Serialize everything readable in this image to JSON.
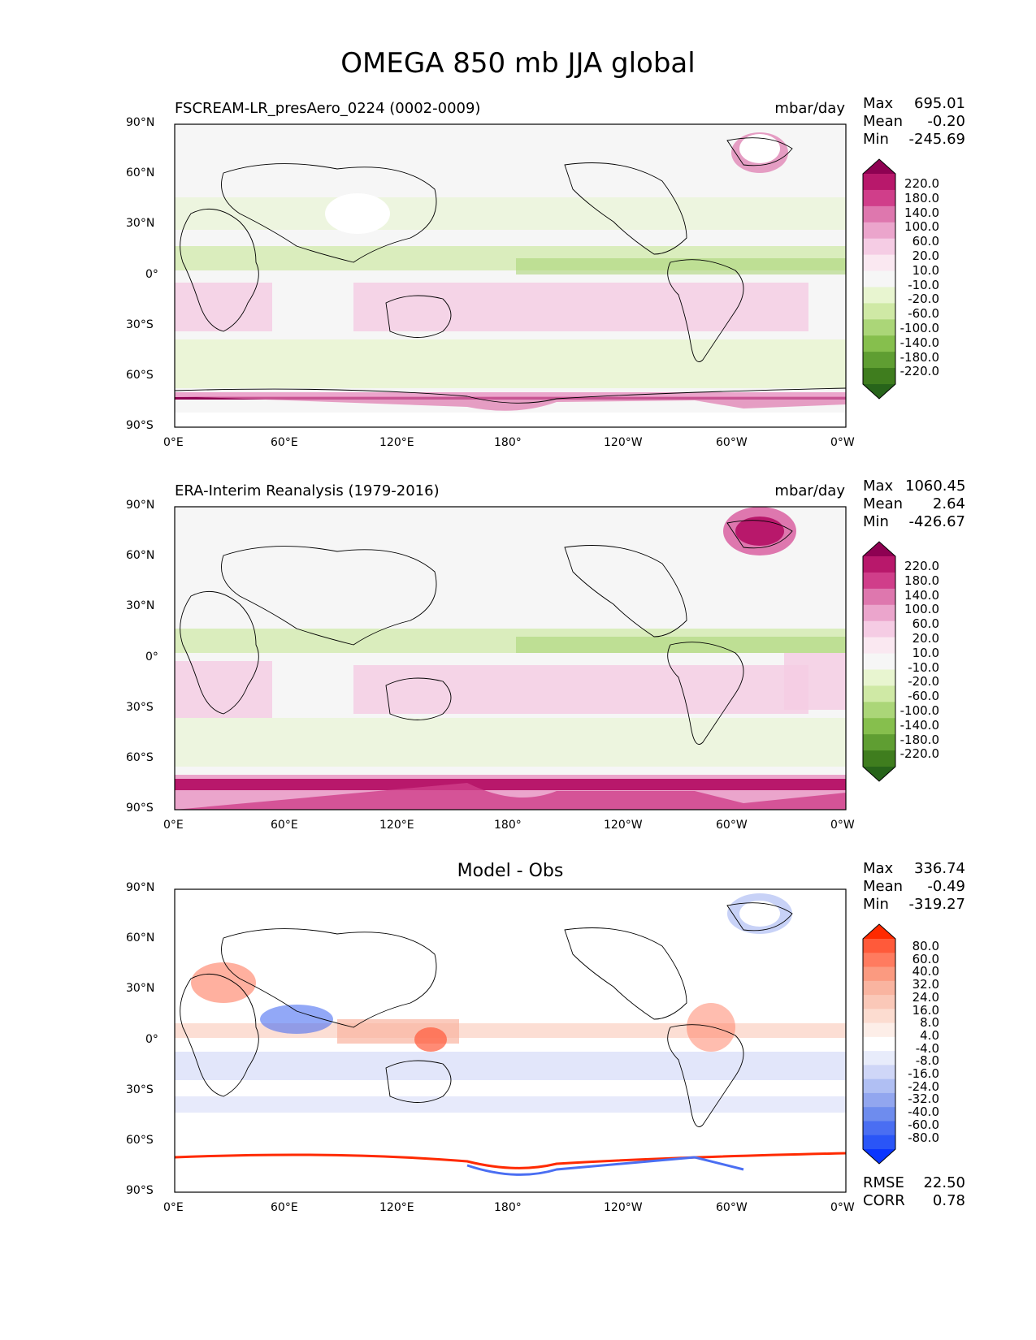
{
  "suptitle": "OMEGA 850 mb JJA global",
  "lat_ticks": [
    "90°N",
    "60°N",
    "30°N",
    "0°",
    "30°S",
    "60°S",
    "90°S"
  ],
  "lon_ticks": [
    "0°E",
    "60°E",
    "120°E",
    "180°",
    "120°W",
    "60°W",
    "0°W"
  ],
  "panels": {
    "model": {
      "title_left": "FSCREAM-LR_presAero_0224 (0002-0009)",
      "title_right": "mbar/day",
      "stats": [
        [
          "Max",
          "695.01"
        ],
        [
          "Mean",
          "-0.20"
        ],
        [
          "Min",
          "-245.69"
        ]
      ]
    },
    "obs": {
      "title_left": "ERA-Interim Reanalysis (1979-2016)",
      "title_right": "mbar/day",
      "stats": [
        [
          "Max",
          "1060.45"
        ],
        [
          "Mean",
          "2.64"
        ],
        [
          "Min",
          "-426.67"
        ]
      ]
    },
    "diff": {
      "title_center": "Model - Obs",
      "stats": [
        [
          "Max",
          "336.74"
        ],
        [
          "Mean",
          "-0.49"
        ],
        [
          "Min",
          "-319.27"
        ]
      ],
      "bottom_stats": [
        [
          "RMSE",
          "22.50"
        ],
        [
          "CORR",
          "0.78"
        ]
      ]
    }
  },
  "colorbar_main": {
    "labels": [
      "220.0",
      "180.0",
      "140.0",
      "100.0",
      "60.0",
      "20.0",
      "10.0",
      "-10.0",
      "-20.0",
      "-60.0",
      "-100.0",
      "-140.0",
      "-180.0",
      "-220.0"
    ],
    "colors": [
      "#8e0152",
      "#b8186b",
      "#d03e8a",
      "#de77ae",
      "#eba5cc",
      "#f5cce4",
      "#fae8f1",
      "#f6f6f6",
      "#e8f5d0",
      "#cfe9a5",
      "#abd678",
      "#86bf4d",
      "#5f9e32",
      "#3f7d1e",
      "#27641a"
    ]
  },
  "colorbar_diff": {
    "labels": [
      "80.0",
      "60.0",
      "40.0",
      "32.0",
      "24.0",
      "16.0",
      "8.0",
      "4.0",
      "-4.0",
      "-8.0",
      "-16.0",
      "-24.0",
      "-32.0",
      "-40.0",
      "-60.0",
      "-80.0"
    ],
    "colors": [
      "#ff2a00",
      "#ff5a3a",
      "#ff7b5f",
      "#fb9a80",
      "#f9b4a0",
      "#fac8b8",
      "#fcdcd0",
      "#fdeee8",
      "#ffffff",
      "#e8ecfb",
      "#cfd6f7",
      "#b0bff3",
      "#92a6ef",
      "#6e8cee",
      "#4a6ef2",
      "#2a55f7",
      "#0a35ff"
    ]
  }
}
